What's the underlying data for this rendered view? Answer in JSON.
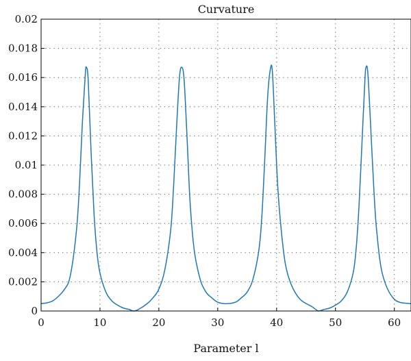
{
  "chart_data": {
    "type": "line",
    "title": "Curvature",
    "xlabel": "Parameter l",
    "ylabel": "",
    "xlim": [
      0,
      62.83
    ],
    "ylim": [
      0,
      0.02
    ],
    "grid": true,
    "grid_style": "dotted",
    "x_ticks": [
      0,
      10,
      20,
      30,
      40,
      50,
      60
    ],
    "x_tick_labels": [
      "0",
      "10",
      "20",
      "30",
      "40",
      "50",
      "60"
    ],
    "y_ticks": [
      0,
      0.002,
      0.004,
      0.006,
      0.008,
      0.01,
      0.012,
      0.014,
      0.016,
      0.018,
      0.02
    ],
    "y_tick_labels": [
      "0",
      "0.002",
      "0.004",
      "0.006",
      "0.008",
      "0.01",
      "0.012",
      "0.014",
      "0.016",
      "0.018",
      "0.02"
    ],
    "line_color": "#1f77b4",
    "series": [
      {
        "x": [
          0,
          2,
          4,
          5,
          6,
          6.5,
          7,
          7.5,
          7.7,
          8,
          8.5,
          9,
          9.5,
          10,
          11,
          12,
          13,
          14,
          15,
          15.7,
          16.5,
          18,
          19,
          20,
          21,
          22,
          22.5,
          23,
          23.5,
          23.9,
          24.3,
          24.8,
          25.3,
          26,
          27,
          28,
          29,
          30,
          31.4,
          33,
          34,
          35,
          36,
          37,
          37.5,
          38,
          38.5,
          39,
          39.3,
          39.7,
          40.2,
          40.8,
          41.5,
          42.5,
          44,
          46,
          47.1,
          48,
          49,
          50,
          51,
          52,
          53,
          53.5,
          54,
          54.5,
          55,
          55.2,
          55.5,
          56,
          56.5,
          57,
          58,
          60,
          62.83
        ],
        "y": [
          0.0005,
          0.0007,
          0.0015,
          0.0025,
          0.0055,
          0.0085,
          0.0128,
          0.0162,
          0.0167,
          0.0158,
          0.0108,
          0.0066,
          0.004,
          0.0026,
          0.0013,
          0.0007,
          0.0004,
          0.0002,
          0.0001,
          0,
          0.0001,
          0.0005,
          0.0009,
          0.0015,
          0.0028,
          0.0055,
          0.0085,
          0.0125,
          0.016,
          0.0167,
          0.0158,
          0.0118,
          0.0075,
          0.0042,
          0.0022,
          0.0013,
          0.0009,
          0.0006,
          0.0005,
          0.0006,
          0.0009,
          0.0013,
          0.0022,
          0.0042,
          0.0065,
          0.0105,
          0.0148,
          0.0167,
          0.0163,
          0.0128,
          0.0085,
          0.0055,
          0.0032,
          0.0018,
          0.0008,
          0.0003,
          0,
          0.0001,
          0.0002,
          0.0004,
          0.0007,
          0.0013,
          0.0026,
          0.0042,
          0.0072,
          0.0115,
          0.0158,
          0.0167,
          0.0163,
          0.0125,
          0.0085,
          0.0055,
          0.0025,
          0.0008,
          0.0005
        ]
      }
    ]
  }
}
